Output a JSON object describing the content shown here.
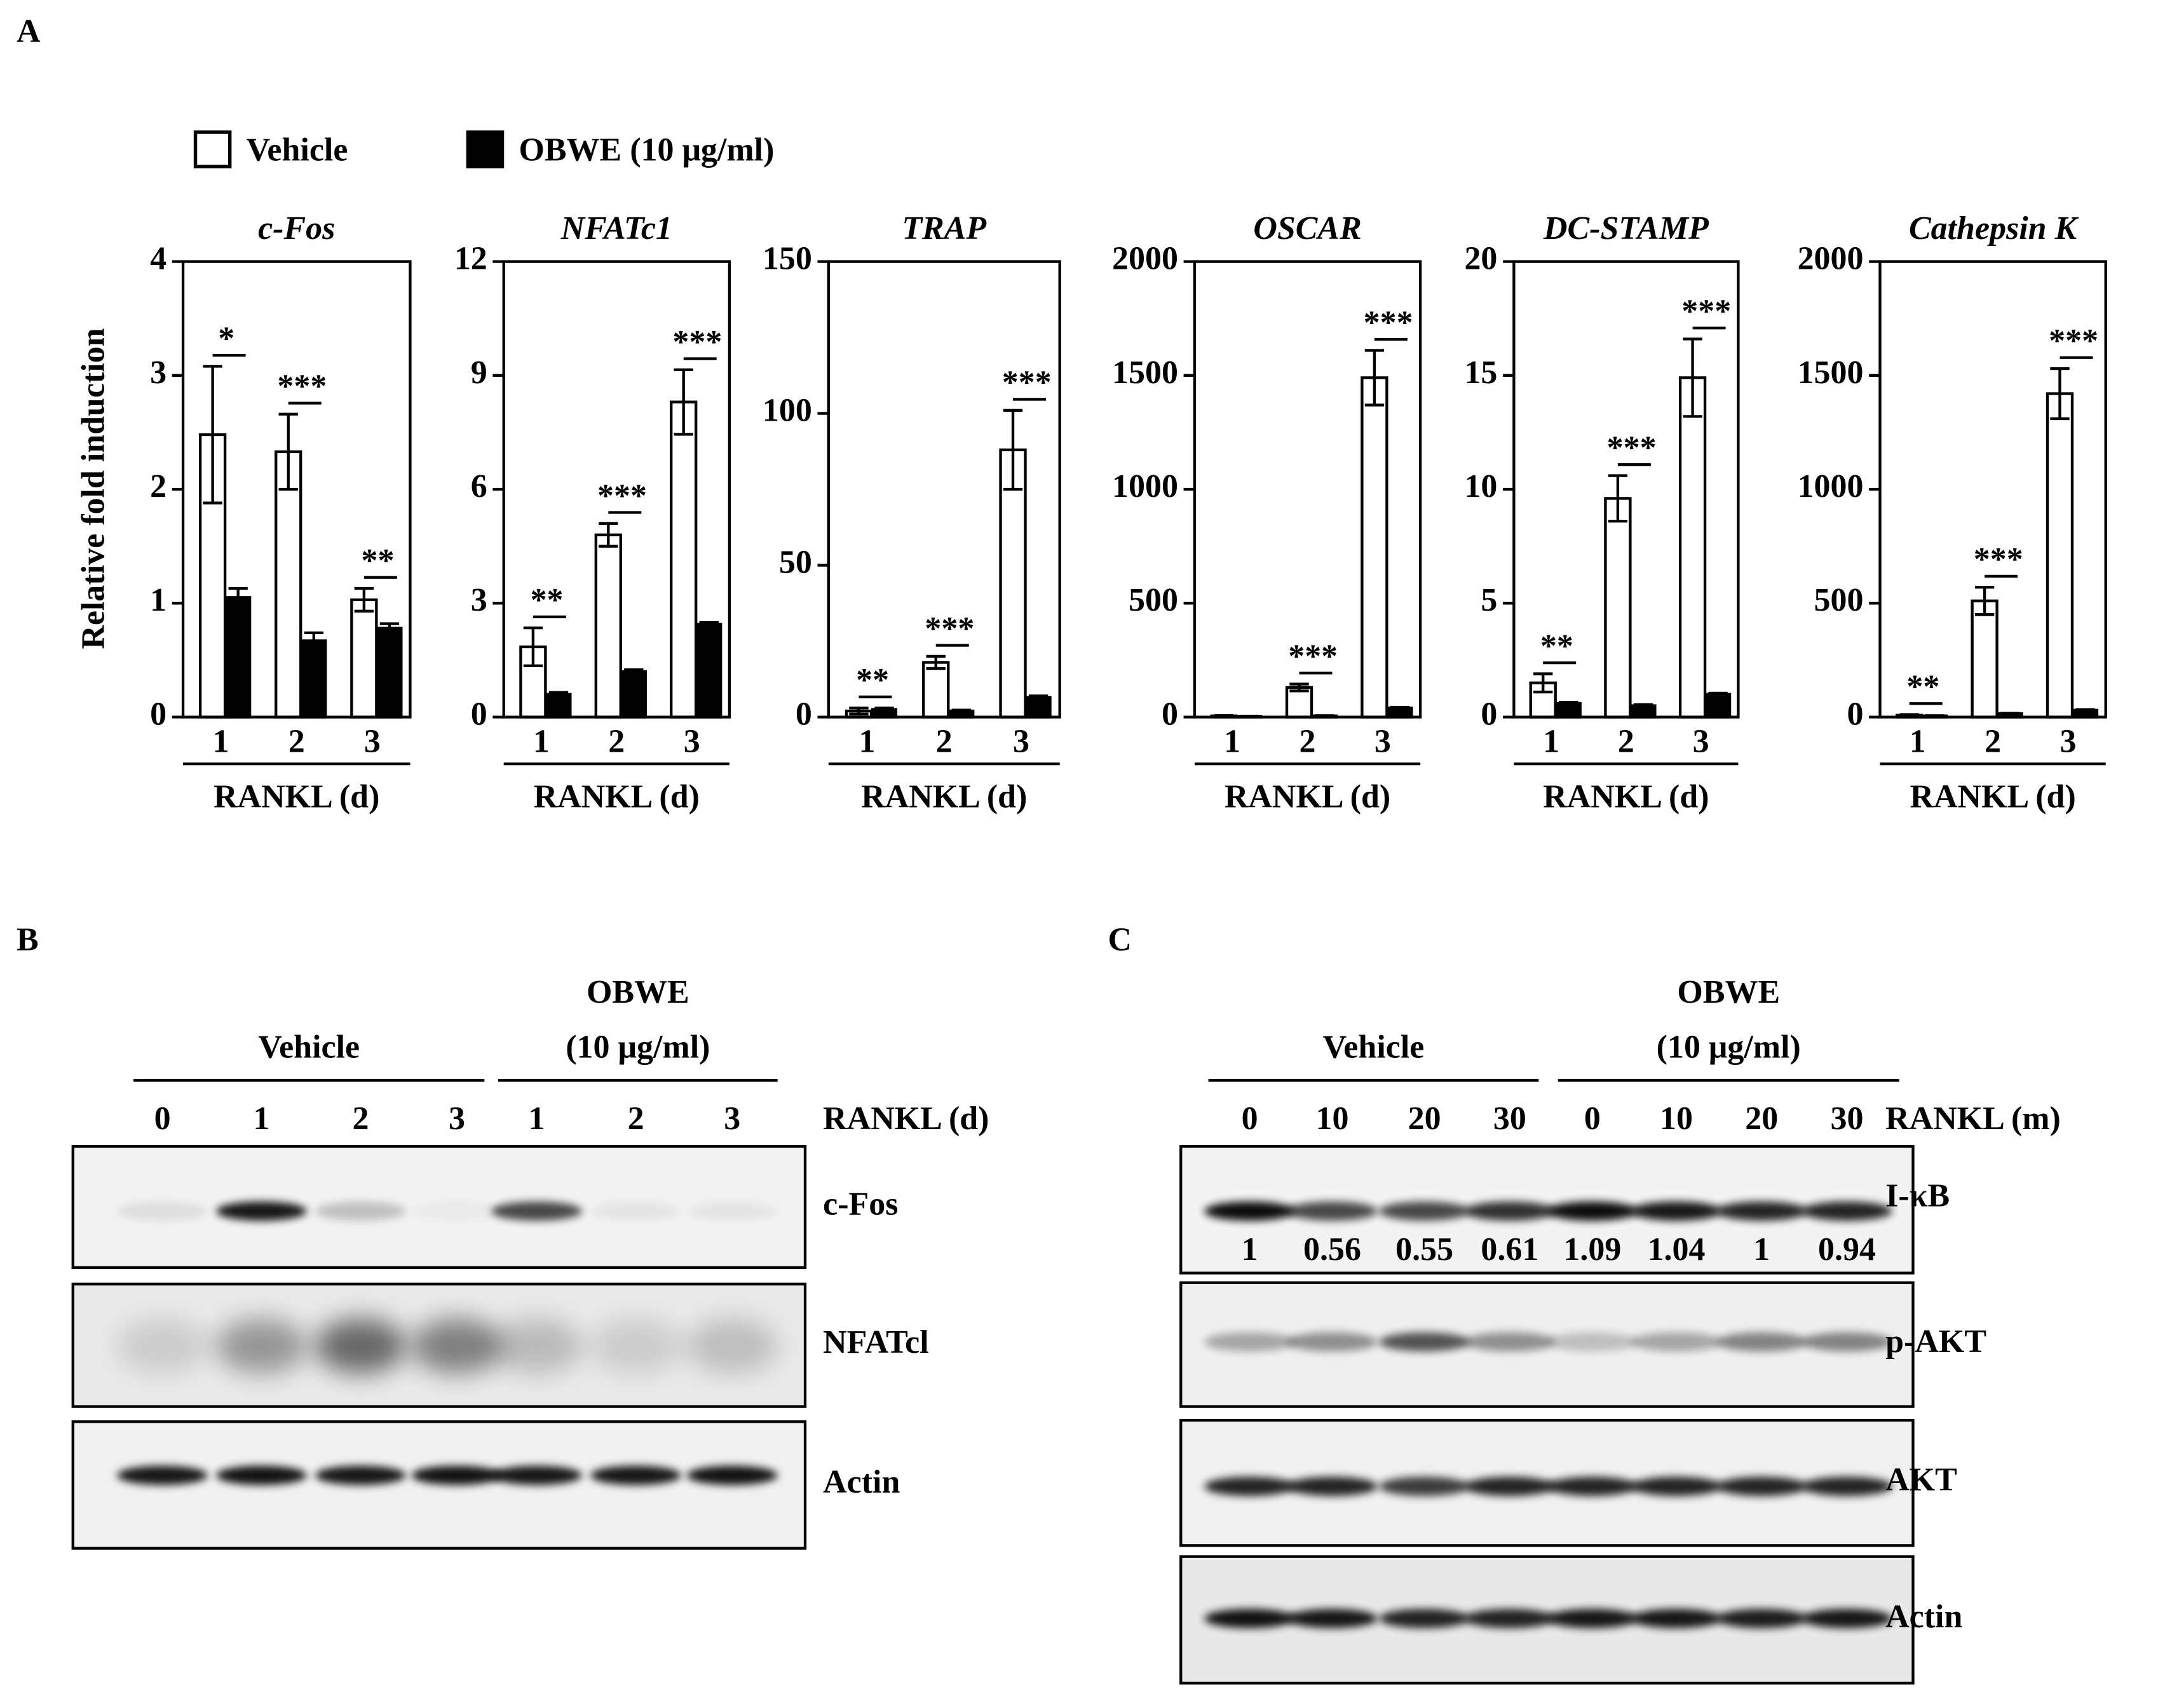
{
  "panel_labels": [
    "A",
    "B",
    "C"
  ],
  "chart_data": [
    {
      "type": "bar",
      "title": "c-Fos",
      "y_label": "Relative fold induction",
      "x_label": "RANKL (d)",
      "categories": [
        "1",
        "2",
        "3"
      ],
      "ylim": [
        0,
        4
      ],
      "yticks": [
        0,
        1,
        2,
        3,
        4
      ],
      "series": [
        {
          "name": "Vehicle",
          "color": "#ffffff",
          "values": [
            2.48,
            2.33,
            1.03
          ],
          "errors": [
            0.6,
            0.33,
            0.1
          ]
        },
        {
          "name": "OBWE (10 μg/ml)",
          "color": "#000000",
          "values": [
            1.05,
            0.67,
            0.78
          ],
          "errors": [
            0.08,
            0.07,
            0.04
          ]
        }
      ],
      "significance": [
        "*",
        "***",
        "**"
      ]
    },
    {
      "type": "bar",
      "title": "NFATc1",
      "x_label": "RANKL (d)",
      "categories": [
        "1",
        "2",
        "3"
      ],
      "ylim": [
        0,
        12
      ],
      "yticks": [
        0,
        3,
        6,
        9,
        12
      ],
      "series": [
        {
          "color": "#ffffff",
          "values": [
            1.85,
            4.8,
            8.3
          ],
          "errors": [
            0.5,
            0.3,
            0.85
          ]
        },
        {
          "color": "#000000",
          "values": [
            0.6,
            1.2,
            2.45
          ],
          "errors": [
            0.05,
            0.05,
            0.05
          ]
        }
      ],
      "significance": [
        "**",
        "***",
        "***"
      ]
    },
    {
      "type": "bar",
      "title": "TRAP",
      "x_label": "RANKL (d)",
      "categories": [
        "1",
        "2",
        "3"
      ],
      "ylim": [
        0,
        150
      ],
      "yticks": [
        0,
        50,
        100,
        150
      ],
      "series": [
        {
          "color": "#ffffff",
          "values": [
            2,
            18,
            88
          ],
          "errors": [
            1,
            2,
            13
          ]
        },
        {
          "color": "#000000",
          "values": [
            2.5,
            2,
            6.5
          ],
          "errors": [
            0.5,
            0.3,
            0.5
          ]
        }
      ],
      "significance": [
        "**",
        "***",
        "***"
      ]
    },
    {
      "type": "bar",
      "title": "OSCAR",
      "x_label": "RANKL (d)",
      "categories": [
        "1",
        "2",
        "3"
      ],
      "ylim": [
        0,
        2000
      ],
      "yticks": [
        0,
        500,
        1000,
        1500,
        2000
      ],
      "series": [
        {
          "color": "#ffffff",
          "values": [
            5,
            130,
            1490
          ],
          "errors": [
            2,
            15,
            120
          ]
        },
        {
          "color": "#000000",
          "values": [
            3,
            5,
            40
          ],
          "errors": [
            1,
            1,
            3
          ]
        }
      ],
      "significance": [
        null,
        "***",
        "***"
      ]
    },
    {
      "type": "bar",
      "title": "DC-STAMP",
      "x_label": "RANKL (d)",
      "categories": [
        "1",
        "2",
        "3"
      ],
      "ylim": [
        0,
        20
      ],
      "yticks": [
        0,
        5,
        10,
        15,
        20
      ],
      "series": [
        {
          "color": "#ffffff",
          "values": [
            1.5,
            9.6,
            14.9
          ],
          "errors": [
            0.4,
            1.0,
            1.7
          ]
        },
        {
          "color": "#000000",
          "values": [
            0.6,
            0.5,
            1.0
          ],
          "errors": [
            0.05,
            0.05,
            0.05
          ]
        }
      ],
      "significance": [
        "**",
        "***",
        "***"
      ]
    },
    {
      "type": "bar",
      "title": "Cathepsin K",
      "x_label": "RANKL (d)",
      "categories": [
        "1",
        "2",
        "3"
      ],
      "ylim": [
        0,
        2000
      ],
      "yticks": [
        0,
        500,
        1000,
        1500,
        2000
      ],
      "series": [
        {
          "color": "#ffffff",
          "values": [
            8,
            510,
            1420
          ],
          "errors": [
            3,
            60,
            110
          ]
        },
        {
          "color": "#000000",
          "values": [
            5,
            15,
            30
          ],
          "errors": [
            1,
            2,
            3
          ]
        }
      ],
      "significance": [
        "**",
        "***",
        "***"
      ]
    }
  ],
  "blot_b": {
    "groups": [
      {
        "lines": [
          "Vehicle"
        ]
      },
      {
        "lines": [
          "OBWE",
          "(10 μg/ml)"
        ]
      }
    ],
    "lanes": [
      "0",
      "1",
      "2",
      "3",
      "1",
      "2",
      "3"
    ],
    "lane_axis": "RANKL (d)",
    "rows": [
      "c-Fos",
      "NFATcl",
      "Actin"
    ]
  },
  "blot_c": {
    "groups": [
      {
        "lines": [
          "Vehicle"
        ]
      },
      {
        "lines": [
          "OBWE",
          "(10 μg/ml)"
        ]
      }
    ],
    "lanes": [
      "0",
      "10",
      "20",
      "30",
      "0",
      "10",
      "20",
      "30"
    ],
    "lane_axis": "RANKL (m)",
    "rows": [
      "I-κB",
      "p-AKT",
      "AKT",
      "Actin"
    ],
    "quantification": [
      1,
      0.56,
      0.55,
      0.61,
      1.09,
      1.04,
      1,
      0.94
    ]
  }
}
